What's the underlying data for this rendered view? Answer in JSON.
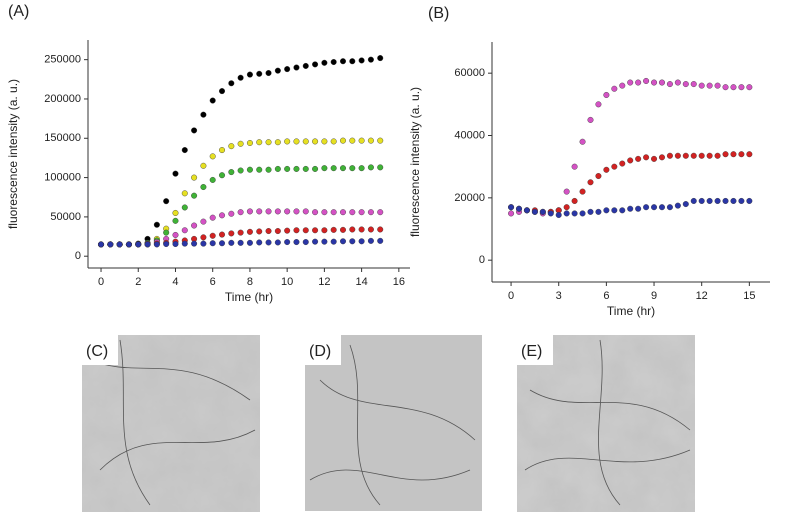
{
  "chart_data": [
    {
      "type": "scatter",
      "label": "(A)",
      "x_label": "Time (hr)",
      "y_label": "fluorescence intensity (a. u.)",
      "x": [
        0,
        0.5,
        1,
        1.5,
        2,
        2.5,
        3,
        3.5,
        4,
        4.5,
        5,
        5.5,
        6,
        6.5,
        7,
        7.5,
        8,
        8.5,
        9,
        9.5,
        10,
        10.5,
        11,
        11.5,
        12,
        12.5,
        13,
        13.5,
        14,
        14.5,
        15
      ],
      "xlim": [
        -0.7,
        16.6
      ],
      "xticks": [
        0,
        2,
        4,
        6,
        8,
        10,
        12,
        14,
        16
      ],
      "ylim": [
        -15000,
        275000
      ],
      "yticks": [
        0,
        50000,
        100000,
        150000,
        200000,
        250000
      ],
      "series": [
        {
          "color": "#000000",
          "values": [
            15000,
            15000,
            15000,
            15000,
            16000,
            22000,
            40000,
            70000,
            105000,
            135000,
            160000,
            180000,
            198000,
            210000,
            220000,
            227000,
            231000,
            232000,
            233000,
            236000,
            238000,
            240000,
            242000,
            244000,
            246000,
            247000,
            248000,
            248000,
            249000,
            250000,
            252000
          ]
        },
        {
          "color": "#e6e022",
          "values": [
            15000,
            15000,
            15000,
            15000,
            15000,
            15000,
            22000,
            35000,
            55000,
            80000,
            100000,
            115000,
            127000,
            135000,
            140000,
            143000,
            144000,
            145000,
            145000,
            145000,
            146000,
            146000,
            146000,
            146000,
            146000,
            146000,
            147000,
            147000,
            147000,
            147000,
            147000
          ]
        },
        {
          "color": "#3fb236",
          "values": [
            15000,
            15000,
            15000,
            15000,
            15000,
            17000,
            20000,
            30000,
            45000,
            62000,
            77000,
            88000,
            97000,
            103000,
            107000,
            109000,
            110000,
            110000,
            110000,
            111000,
            111000,
            111000,
            111000,
            111000,
            112000,
            112000,
            112000,
            112000,
            112000,
            113000,
            113000
          ]
        },
        {
          "color": "#d452c4",
          "values": [
            15000,
            15000,
            15000,
            15000,
            15000,
            16000,
            18000,
            22000,
            27000,
            33000,
            39000,
            44000,
            49000,
            52000,
            54000,
            56000,
            57000,
            57000,
            57000,
            57000,
            57000,
            57000,
            57000,
            56000,
            56000,
            56000,
            56000,
            56000,
            56000,
            56000,
            56000
          ]
        },
        {
          "color": "#d22222",
          "values": [
            15000,
            15000,
            15000,
            15000,
            15000,
            15500,
            16000,
            17000,
            18500,
            20000,
            22000,
            24000,
            26000,
            27500,
            29000,
            30000,
            31000,
            31500,
            32000,
            32000,
            32500,
            33000,
            33000,
            33000,
            33000,
            33500,
            33500,
            34000,
            34000,
            34000,
            34000
          ]
        },
        {
          "color": "#2a36a6",
          "values": [
            15000,
            15000,
            15000,
            15000,
            15000,
            15000,
            15000,
            15500,
            15500,
            16000,
            16000,
            16000,
            16500,
            16500,
            17000,
            17000,
            17000,
            17500,
            17500,
            17500,
            18000,
            18000,
            18000,
            18500,
            18500,
            18500,
            19000,
            19000,
            19000,
            19500,
            19500
          ]
        }
      ]
    },
    {
      "type": "scatter",
      "label": "(B)",
      "x_label": "Time (hr)",
      "y_label": "fluorescence intensity (a. u.)",
      "x": [
        0,
        0.5,
        1,
        1.5,
        2,
        2.5,
        3,
        3.5,
        4,
        4.5,
        5,
        5.5,
        6,
        6.5,
        7,
        7.5,
        8,
        8.5,
        9,
        9.5,
        10,
        10.5,
        11,
        11.5,
        12,
        12.5,
        13,
        13.5,
        14,
        14.5,
        15
      ],
      "xlim": [
        -1.2,
        16.3
      ],
      "xticks": [
        0,
        3,
        6,
        9,
        12,
        15
      ],
      "ylim": [
        -7000,
        70000
      ],
      "yticks": [
        0,
        20000,
        40000,
        60000
      ],
      "series": [
        {
          "color": "#d452c4",
          "values": [
            15000,
            15500,
            16000,
            15500,
            15000,
            15500,
            16000,
            22000,
            30000,
            38000,
            45000,
            50000,
            53000,
            55000,
            56000,
            57000,
            57000,
            57500,
            57000,
            57000,
            56500,
            57000,
            56500,
            56500,
            56000,
            56000,
            56000,
            55500,
            55500,
            55500,
            55500
          ]
        },
        {
          "color": "#d22222",
          "values": [
            17000,
            16500,
            16000,
            16000,
            15500,
            15500,
            16000,
            17000,
            19000,
            22000,
            25000,
            27000,
            29000,
            30000,
            31000,
            32000,
            32500,
            33000,
            32500,
            33000,
            33500,
            33500,
            33500,
            33500,
            33500,
            33500,
            33500,
            34000,
            34000,
            34000,
            34000
          ]
        },
        {
          "color": "#2a36a6",
          "values": [
            17000,
            16500,
            16000,
            15500,
            15500,
            15000,
            14500,
            15000,
            15000,
            15000,
            15500,
            15500,
            16000,
            16000,
            16000,
            16500,
            16500,
            17000,
            17000,
            17000,
            17000,
            17500,
            18000,
            19000,
            19000,
            19000,
            19000,
            19000,
            19000,
            19000,
            19000
          ]
        }
      ]
    }
  ],
  "images": [
    {
      "label": "(C)"
    },
    {
      "label": "(D)"
    },
    {
      "label": "(E)"
    }
  ]
}
